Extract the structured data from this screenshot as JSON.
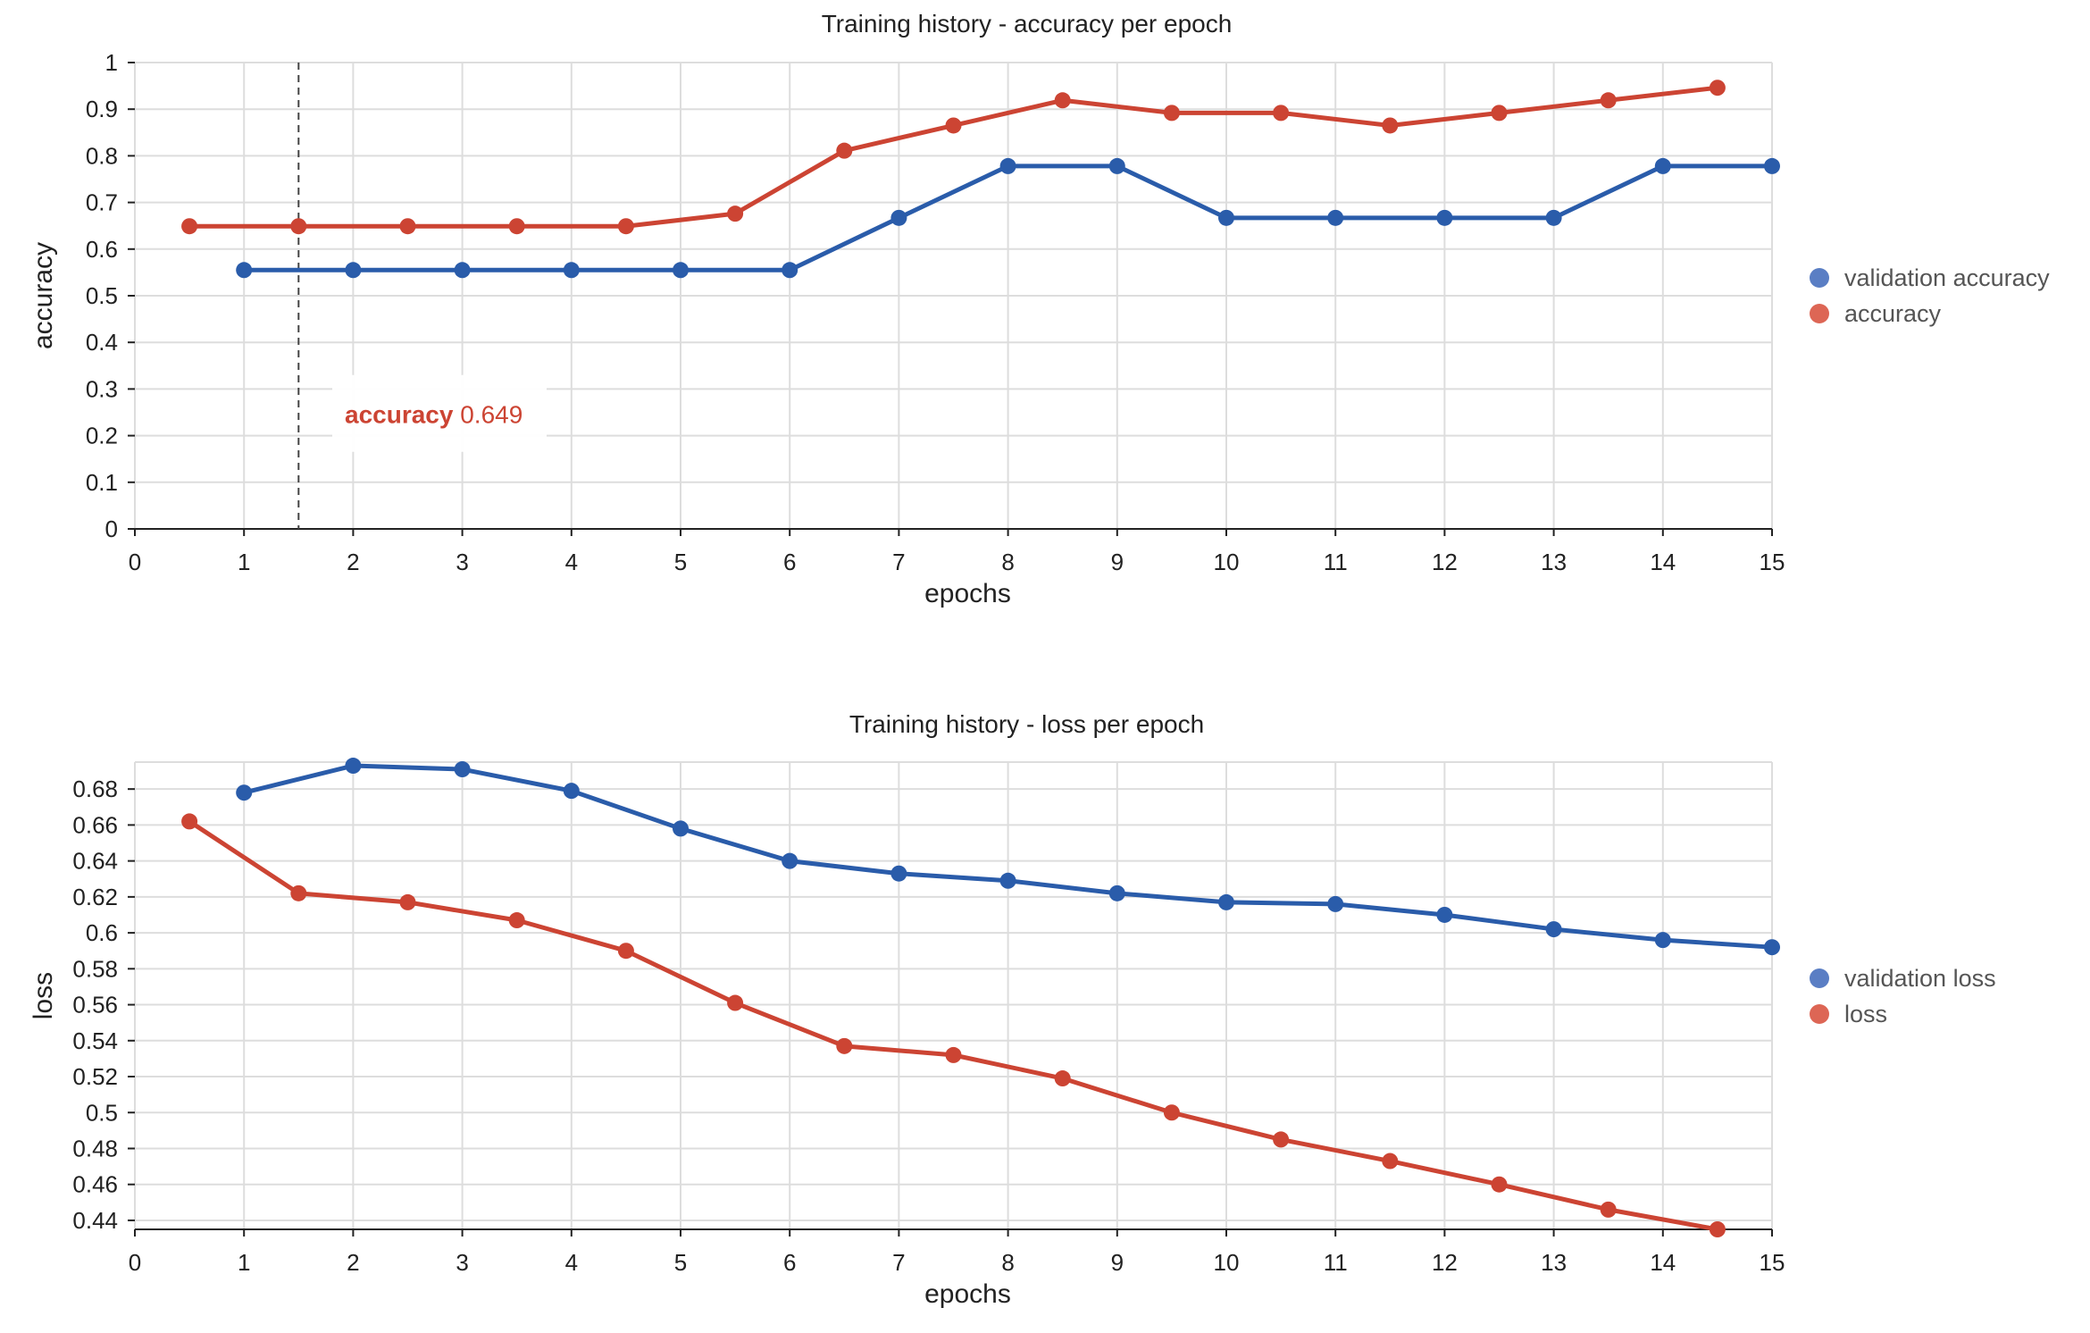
{
  "colors": {
    "red": "#cc4433",
    "blue": "#2a5caa",
    "legend_blue": "#5a7ec4",
    "legend_red": "#dd6655",
    "grid": "#dddddd"
  },
  "chart_data": [
    {
      "type": "line",
      "title": "Training history - accuracy per epoch",
      "xlabel": "epochs",
      "ylabel": "accuracy",
      "xlim": [
        0,
        15
      ],
      "ylim": [
        0,
        1
      ],
      "xticks": [
        "0",
        "1",
        "2",
        "3",
        "4",
        "5",
        "6",
        "7",
        "8",
        "9",
        "10",
        "11",
        "12",
        "13",
        "14",
        "15"
      ],
      "yticks": [
        "0",
        "0.1",
        "0.2",
        "0.3",
        "0.4",
        "0.5",
        "0.6",
        "0.7",
        "0.8",
        "0.9",
        "1"
      ],
      "legend_position": "right",
      "grid": true,
      "series": [
        {
          "name": "validation accuracy",
          "color": "#2a5caa",
          "x": [
            1,
            2,
            3,
            4,
            5,
            6,
            7,
            8,
            9,
            10,
            11,
            12,
            13,
            14,
            15
          ],
          "y": [
            0.555,
            0.555,
            0.555,
            0.555,
            0.555,
            0.555,
            0.667,
            0.778,
            0.778,
            0.667,
            0.667,
            0.667,
            0.667,
            0.778,
            0.778
          ]
        },
        {
          "name": "accuracy",
          "color": "#cc4433",
          "x": [
            0.5,
            1.5,
            2.5,
            3.5,
            4.5,
            5.5,
            6.5,
            7.5,
            8.5,
            9.5,
            10.5,
            11.5,
            12.5,
            13.5,
            14.5
          ],
          "y": [
            0.649,
            0.649,
            0.649,
            0.649,
            0.649,
            0.676,
            0.811,
            0.865,
            0.919,
            0.892,
            0.892,
            0.865,
            0.892,
            0.919,
            0.946
          ]
        }
      ],
      "tooltip": {
        "series": "accuracy",
        "value": "0.649",
        "x": 1.5
      }
    },
    {
      "type": "line",
      "title": "Training history - loss per epoch",
      "xlabel": "epochs",
      "ylabel": "loss",
      "xlim": [
        0,
        15
      ],
      "ylim": [
        0.435,
        0.695
      ],
      "xticks": [
        "0",
        "1",
        "2",
        "3",
        "4",
        "5",
        "6",
        "7",
        "8",
        "9",
        "10",
        "11",
        "12",
        "13",
        "14",
        "15"
      ],
      "yticks": [
        "0.44",
        "0.46",
        "0.48",
        "0.5",
        "0.52",
        "0.54",
        "0.56",
        "0.58",
        "0.6",
        "0.62",
        "0.64",
        "0.66",
        "0.68"
      ],
      "legend_position": "right",
      "grid": true,
      "series": [
        {
          "name": "validation loss",
          "color": "#2a5caa",
          "x": [
            1,
            2,
            3,
            4,
            5,
            6,
            7,
            8,
            9,
            10,
            11,
            12,
            13,
            14,
            15
          ],
          "y": [
            0.678,
            0.693,
            0.691,
            0.679,
            0.658,
            0.64,
            0.633,
            0.629,
            0.622,
            0.617,
            0.616,
            0.61,
            0.602,
            0.596,
            0.592
          ]
        },
        {
          "name": "loss",
          "color": "#cc4433",
          "x": [
            0.5,
            1.5,
            2.5,
            3.5,
            4.5,
            5.5,
            6.5,
            7.5,
            8.5,
            9.5,
            10.5,
            11.5,
            12.5,
            13.5,
            14.5
          ],
          "y": [
            0.662,
            0.622,
            0.617,
            0.607,
            0.59,
            0.561,
            0.537,
            0.532,
            0.519,
            0.5,
            0.485,
            0.473,
            0.46,
            0.446,
            0.435
          ]
        }
      ]
    }
  ]
}
